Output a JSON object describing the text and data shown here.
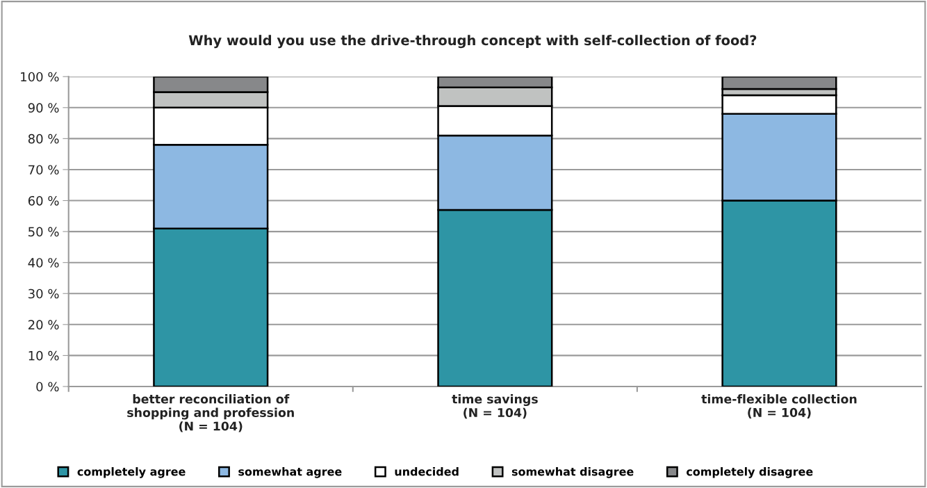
{
  "chart_data": {
    "type": "bar",
    "stacked": true,
    "title": "Why would you use the drive-through concept with self-collection of food?",
    "categories": [
      "better reconciliation of\nshopping and profession\n(N = 104)",
      "time savings\n(N = 104)",
      "time-flexible collection\n(N = 104)"
    ],
    "series": [
      {
        "name": "completely agree",
        "color": "#2e95a5",
        "values": [
          51,
          57,
          60
        ]
      },
      {
        "name": "somewhat agree",
        "color": "#8db8e2",
        "values": [
          27,
          24,
          28
        ]
      },
      {
        "name": "undecided",
        "color": "#ffffff",
        "values": [
          12,
          9.5,
          6
        ]
      },
      {
        "name": "somewhat disagree",
        "color": "#c0c2c1",
        "values": [
          5,
          6,
          2
        ]
      },
      {
        "name": "completely disagree",
        "color": "#87888a",
        "values": [
          5,
          3.5,
          4
        ]
      }
    ],
    "ylim": [
      0,
      100
    ],
    "yticks": [
      {
        "value": 0,
        "label": "0 %"
      },
      {
        "value": 10,
        "label": "10 %"
      },
      {
        "value": 20,
        "label": "20 %"
      },
      {
        "value": 30,
        "label": "30 %"
      },
      {
        "value": 40,
        "label": "40 %"
      },
      {
        "value": 50,
        "label": "50 %"
      },
      {
        "value": 60,
        "label": "60 %"
      },
      {
        "value": 70,
        "label": "70 %"
      },
      {
        "value": 80,
        "label": "80 %"
      },
      {
        "value": 90,
        "label": "90 %"
      },
      {
        "value": 100,
        "label": "100 %"
      }
    ],
    "grid": "y",
    "legend": "bottom"
  }
}
